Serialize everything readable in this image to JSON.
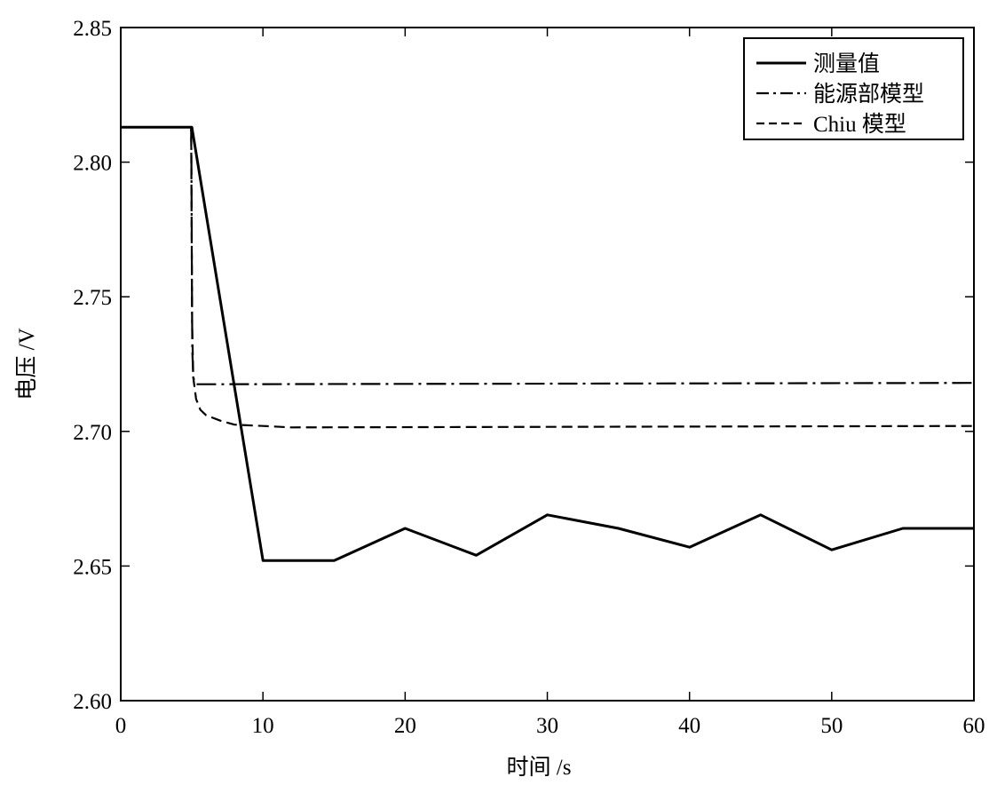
{
  "chart_data": {
    "type": "line",
    "xlabel": "时间 /s",
    "ylabel": "电压 /V",
    "xlim": [
      0,
      60
    ],
    "ylim": [
      2.6,
      2.85
    ],
    "x_ticks": [
      "0",
      "10",
      "20",
      "30",
      "40",
      "50",
      "60"
    ],
    "y_ticks": [
      "2.60",
      "2.65",
      "2.70",
      "2.75",
      "2.80",
      "2.85"
    ],
    "grid": false,
    "legend_position": "top-right",
    "series": [
      {
        "name": "测量值",
        "style": "solid",
        "color": "#000000",
        "points": [
          [
            0,
            2.813
          ],
          [
            5,
            2.813
          ],
          [
            10,
            2.652
          ],
          [
            15,
            2.652
          ],
          [
            20,
            2.664
          ],
          [
            25,
            2.654
          ],
          [
            30,
            2.669
          ],
          [
            35,
            2.664
          ],
          [
            40,
            2.657
          ],
          [
            45,
            2.669
          ],
          [
            50,
            2.656
          ],
          [
            55,
            2.664
          ],
          [
            60,
            2.664
          ]
        ]
      },
      {
        "name": "能源部模型",
        "style": "dashdot",
        "color": "#000000",
        "points": [
          [
            0,
            2.813
          ],
          [
            4.95,
            2.813
          ],
          [
            4.97,
            2.8
          ],
          [
            5.0,
            2.76
          ],
          [
            5.03,
            2.73
          ],
          [
            5.1,
            2.72
          ],
          [
            5.3,
            2.7175
          ],
          [
            6,
            2.7175
          ],
          [
            60,
            2.718
          ]
        ]
      },
      {
        "name": "Chiu 模型",
        "style": "dashed",
        "color": "#000000",
        "points": [
          [
            0,
            2.813
          ],
          [
            4.95,
            2.813
          ],
          [
            4.98,
            2.78
          ],
          [
            5.02,
            2.74
          ],
          [
            5.1,
            2.72
          ],
          [
            5.3,
            2.712
          ],
          [
            5.6,
            2.708
          ],
          [
            6,
            2.706
          ],
          [
            7,
            2.704
          ],
          [
            8,
            2.7025
          ],
          [
            10,
            2.702
          ],
          [
            12,
            2.7015
          ],
          [
            60,
            2.702
          ]
        ]
      }
    ]
  }
}
